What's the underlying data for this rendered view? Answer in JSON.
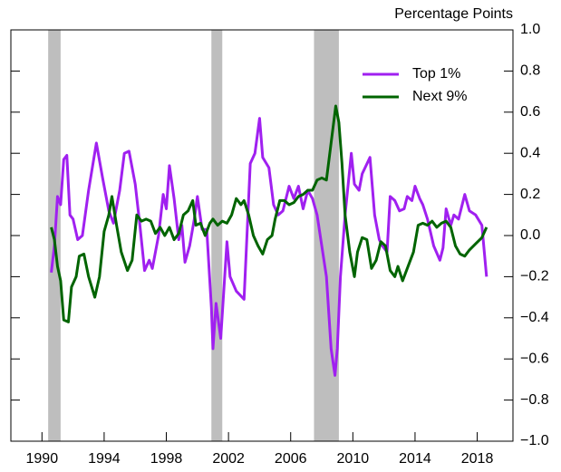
{
  "chart_data": {
    "type": "line",
    "y_label": "Percentage Points",
    "xlim": [
      1988,
      2020.3
    ],
    "ylim": [
      -1.0,
      1.0
    ],
    "xticks": [
      1990,
      1994,
      1998,
      2002,
      2006,
      2010,
      2014,
      2018
    ],
    "yticks": [
      {
        "value": -1.0,
        "label": "−1.0"
      },
      {
        "value": -0.8,
        "label": "−0.8"
      },
      {
        "value": -0.6,
        "label": "−0.6"
      },
      {
        "value": -0.4,
        "label": "−0.4"
      },
      {
        "value": -0.2,
        "label": "−0.2"
      },
      {
        "value": 0.0,
        "label": "0.0"
      },
      {
        "value": 0.2,
        "label": "0.2"
      },
      {
        "value": 0.4,
        "label": "0.4"
      },
      {
        "value": 0.6,
        "label": "0.6"
      },
      {
        "value": 0.8,
        "label": "0.8"
      },
      {
        "value": 1.0,
        "label": "1.0"
      }
    ],
    "shaded_periods": [
      [
        1990.4,
        1991.2
      ],
      [
        2000.9,
        2001.6
      ],
      [
        2007.5,
        2009.1
      ]
    ],
    "shade_color": "#bebebe",
    "legend": "upper right",
    "series": [
      {
        "name": "Top 1%",
        "color": "#a020f0",
        "x": [
          1990.6,
          1990.8,
          1991.0,
          1991.2,
          1991.4,
          1991.6,
          1991.8,
          1992.0,
          1992.3,
          1992.6,
          1993.0,
          1993.5,
          1993.9,
          1994.3,
          1994.6,
          1995.0,
          1995.3,
          1995.6,
          1996.0,
          1996.3,
          1996.6,
          1996.9,
          1997.1,
          1997.5,
          1997.8,
          1998.0,
          1998.2,
          1998.5,
          1998.8,
          1999.0,
          1999.2,
          1999.5,
          1999.8,
          2000.0,
          2000.3,
          2000.6,
          2000.9,
          2001.0,
          2001.2,
          2001.5,
          2001.9,
          2002.1,
          2002.5,
          2003.0,
          2003.4,
          2003.7,
          2004.0,
          2004.2,
          2004.6,
          2004.9,
          2005.2,
          2005.5,
          2005.9,
          2006.2,
          2006.5,
          2006.8,
          2007.1,
          2007.4,
          2007.7,
          2008.0,
          2008.3,
          2008.6,
          2008.85,
          2009.0,
          2009.2,
          2009.5,
          2009.9,
          2010.1,
          2010.4,
          2010.6,
          2011.1,
          2011.4,
          2011.7,
          2011.9,
          2012.2,
          2012.4,
          2012.7,
          2013.0,
          2013.3,
          2013.5,
          2013.8,
          2014.0,
          2014.3,
          2014.5,
          2014.8,
          2015.2,
          2015.6,
          2015.8,
          2016.0,
          2016.3,
          2016.5,
          2016.8,
          2017.2,
          2017.5,
          2017.9,
          2018.3,
          2018.6
        ],
        "values": [
          -0.18,
          -0.05,
          0.19,
          0.15,
          0.37,
          0.39,
          0.1,
          0.08,
          -0.02,
          0.0,
          0.22,
          0.45,
          0.28,
          0.12,
          0.06,
          0.22,
          0.4,
          0.41,
          0.25,
          0.05,
          -0.17,
          -0.12,
          -0.16,
          0.0,
          0.2,
          0.13,
          0.34,
          0.18,
          -0.02,
          0.05,
          -0.13,
          -0.05,
          0.08,
          0.19,
          0.03,
          0.03,
          -0.35,
          -0.55,
          -0.33,
          -0.5,
          -0.03,
          -0.2,
          -0.27,
          -0.31,
          0.35,
          0.4,
          0.57,
          0.38,
          0.33,
          0.15,
          0.1,
          0.12,
          0.24,
          0.18,
          0.24,
          0.13,
          0.22,
          0.18,
          0.1,
          -0.05,
          -0.2,
          -0.55,
          -0.68,
          -0.55,
          -0.2,
          0.1,
          0.4,
          0.25,
          0.22,
          0.3,
          0.38,
          0.1,
          -0.02,
          -0.05,
          -0.08,
          0.19,
          0.17,
          0.12,
          0.13,
          0.19,
          0.17,
          0.24,
          0.18,
          0.15,
          0.08,
          -0.05,
          -0.12,
          -0.06,
          0.13,
          0.05,
          0.1,
          0.08,
          0.2,
          0.12,
          0.1,
          0.05,
          -0.2
        ]
      },
      {
        "name": "Next 9%",
        "color": "#006400",
        "x": [
          1990.6,
          1990.8,
          1991.0,
          1991.2,
          1991.4,
          1991.7,
          1991.9,
          1992.2,
          1992.4,
          1992.7,
          1993.0,
          1993.4,
          1993.7,
          1994.0,
          1994.3,
          1994.5,
          1994.8,
          1995.1,
          1995.5,
          1995.8,
          1996.1,
          1996.4,
          1996.7,
          1997.0,
          1997.3,
          1997.6,
          1997.9,
          1998.2,
          1998.5,
          1998.8,
          1999.1,
          1999.4,
          1999.7,
          1999.9,
          2000.2,
          2000.5,
          2000.8,
          2001.0,
          2001.3,
          2001.6,
          2001.9,
          2002.2,
          2002.5,
          2002.8,
          2003.0,
          2003.3,
          2003.6,
          2003.9,
          2004.2,
          2004.5,
          2004.8,
          2005.0,
          2005.3,
          2005.6,
          2005.9,
          2006.2,
          2006.5,
          2006.8,
          2007.1,
          2007.4,
          2007.7,
          2008.0,
          2008.3,
          2008.6,
          2008.9,
          2009.1,
          2009.3,
          2009.5,
          2009.8,
          2010.1,
          2010.3,
          2010.6,
          2010.9,
          2011.2,
          2011.5,
          2011.8,
          2012.1,
          2012.4,
          2012.7,
          2012.9,
          2013.2,
          2013.5,
          2013.9,
          2014.2,
          2014.5,
          2014.8,
          2015.1,
          2015.4,
          2015.7,
          2016.0,
          2016.3,
          2016.6,
          2016.9,
          2017.2,
          2017.5,
          2017.9,
          2018.3,
          2018.6
        ],
        "values": [
          0.04,
          -0.02,
          -0.15,
          -0.22,
          -0.41,
          -0.42,
          -0.25,
          -0.2,
          -0.1,
          -0.09,
          -0.2,
          -0.3,
          -0.2,
          0.02,
          0.1,
          0.19,
          0.05,
          -0.08,
          -0.17,
          -0.12,
          0.1,
          0.07,
          0.08,
          0.07,
          0.01,
          0.04,
          0.0,
          0.04,
          -0.02,
          0.01,
          0.1,
          0.12,
          0.17,
          0.05,
          0.06,
          0.0,
          0.06,
          0.08,
          0.05,
          0.07,
          0.06,
          0.1,
          0.18,
          0.15,
          0.17,
          0.1,
          0.0,
          -0.05,
          -0.09,
          -0.02,
          0.0,
          0.08,
          0.17,
          0.17,
          0.15,
          0.16,
          0.19,
          0.2,
          0.22,
          0.22,
          0.27,
          0.28,
          0.27,
          0.45,
          0.63,
          0.55,
          0.35,
          0.1,
          -0.08,
          -0.2,
          -0.08,
          -0.01,
          -0.02,
          -0.16,
          -0.12,
          -0.03,
          -0.05,
          -0.17,
          -0.2,
          -0.15,
          -0.22,
          -0.16,
          -0.08,
          0.05,
          0.06,
          0.05,
          0.07,
          0.04,
          0.06,
          0.07,
          0.04,
          -0.05,
          -0.09,
          -0.1,
          -0.07,
          -0.04,
          -0.01,
          0.04
        ]
      }
    ]
  }
}
